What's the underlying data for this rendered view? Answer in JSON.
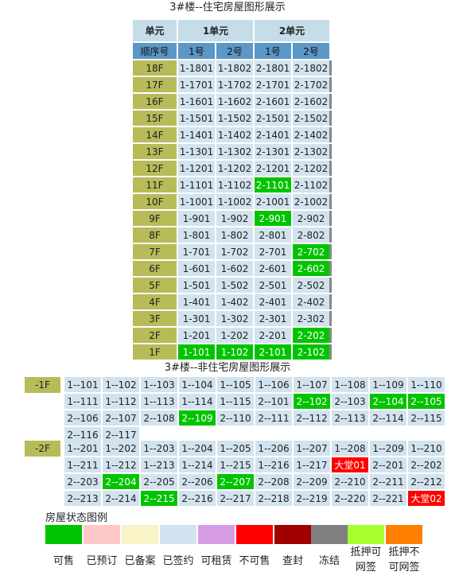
{
  "res_title": "3#楼--住宅房屋图形展示",
  "nonres_title": "3#楼--非住宅房屋图形展示",
  "res": {
    "h_unit": "单元",
    "units": [
      "1单元",
      "2单元"
    ],
    "h_seq": "顺序号",
    "nums": [
      "1号",
      "2号",
      "1号",
      "2号"
    ],
    "rows": [
      {
        "f": "18F",
        "c": [
          "1-1801",
          "1-1802",
          "2-1801",
          "2-1802"
        ],
        "s": [
          "",
          "",
          "",
          ""
        ]
      },
      {
        "f": "17F",
        "c": [
          "1-1701",
          "1-1702",
          "2-1701",
          "2-1702"
        ],
        "s": [
          "",
          "",
          "",
          ""
        ]
      },
      {
        "f": "16F",
        "c": [
          "1-1601",
          "1-1602",
          "2-1601",
          "2-1602"
        ],
        "s": [
          "",
          "",
          "",
          ""
        ]
      },
      {
        "f": "15F",
        "c": [
          "1-1501",
          "1-1502",
          "2-1501",
          "2-1502"
        ],
        "s": [
          "",
          "",
          "",
          ""
        ]
      },
      {
        "f": "14F",
        "c": [
          "1-1401",
          "1-1402",
          "2-1401",
          "2-1402"
        ],
        "s": [
          "",
          "",
          "",
          ""
        ]
      },
      {
        "f": "13F",
        "c": [
          "1-1301",
          "1-1302",
          "2-1301",
          "2-1302"
        ],
        "s": [
          "",
          "",
          "",
          ""
        ]
      },
      {
        "f": "12F",
        "c": [
          "1-1201",
          "1-1202",
          "2-1201",
          "2-1202"
        ],
        "s": [
          "",
          "",
          "",
          ""
        ]
      },
      {
        "f": "11F",
        "c": [
          "1-1101",
          "1-1102",
          "2-1101",
          "2-1102"
        ],
        "s": [
          "",
          "",
          "green",
          ""
        ]
      },
      {
        "f": "10F",
        "c": [
          "1-1001",
          "1-1002",
          "2-1001",
          "2-1002"
        ],
        "s": [
          "",
          "",
          "",
          ""
        ]
      },
      {
        "f": "9F",
        "c": [
          "1-901",
          "1-902",
          "2-901",
          "2-902"
        ],
        "s": [
          "",
          "",
          "green",
          ""
        ]
      },
      {
        "f": "8F",
        "c": [
          "1-801",
          "1-802",
          "2-801",
          "2-802"
        ],
        "s": [
          "",
          "",
          "",
          ""
        ]
      },
      {
        "f": "7F",
        "c": [
          "1-701",
          "1-702",
          "2-701",
          "2-702"
        ],
        "s": [
          "",
          "",
          "",
          "green"
        ]
      },
      {
        "f": "6F",
        "c": [
          "1-601",
          "1-602",
          "2-601",
          "2-602"
        ],
        "s": [
          "",
          "",
          "",
          "green"
        ]
      },
      {
        "f": "5F",
        "c": [
          "1-501",
          "1-502",
          "2-501",
          "2-502"
        ],
        "s": [
          "",
          "",
          "",
          ""
        ]
      },
      {
        "f": "4F",
        "c": [
          "1-401",
          "1-402",
          "2-401",
          "2-402"
        ],
        "s": [
          "",
          "",
          "",
          ""
        ]
      },
      {
        "f": "3F",
        "c": [
          "1-301",
          "1-302",
          "2-301",
          "2-302"
        ],
        "s": [
          "",
          "",
          "",
          ""
        ]
      },
      {
        "f": "2F",
        "c": [
          "1-201",
          "1-202",
          "2-201",
          "2-202"
        ],
        "s": [
          "",
          "",
          "",
          "green"
        ]
      },
      {
        "f": "1F",
        "c": [
          "1-101",
          "1-102",
          "2-101",
          "2-102"
        ],
        "s": [
          "green",
          "green",
          "green",
          "green"
        ]
      }
    ]
  },
  "nonres": [
    {
      "f": "-1F",
      "rows": [
        {
          "c": [
            "1--101",
            "1--102",
            "1--103",
            "1--104",
            "1--105",
            "1--106",
            "1--107",
            "1--108",
            "1--109",
            "1--110"
          ],
          "s": [
            "",
            "",
            "",
            "",
            "",
            "",
            "",
            "",
            "",
            ""
          ]
        },
        {
          "c": [
            "1--111",
            "1--112",
            "1--113",
            "1--114",
            "1--115",
            "2--101",
            "2--102",
            "2--103",
            "2--104",
            "2--105"
          ],
          "s": [
            "",
            "",
            "",
            "",
            "",
            "",
            "green",
            "",
            "green",
            "green"
          ]
        },
        {
          "c": [
            "2--106",
            "2--107",
            "2--108",
            "2--109",
            "2--110",
            "2--111",
            "2--112",
            "2--113",
            "2--114",
            "2--115"
          ],
          "s": [
            "",
            "",
            "",
            "green",
            "",
            "",
            "",
            "",
            "",
            ""
          ]
        },
        {
          "c": [
            "2--116",
            "2--117"
          ],
          "s": [
            "",
            ""
          ]
        }
      ]
    },
    {
      "f": "-2F",
      "rows": [
        {
          "c": [
            "1--201",
            "1--202",
            "1--203",
            "1--204",
            "1--205",
            "1--206",
            "1--207",
            "1--208",
            "1--209",
            "1--210"
          ],
          "s": [
            "",
            "",
            "",
            "",
            "",
            "",
            "",
            "",
            "",
            ""
          ]
        },
        {
          "c": [
            "1--211",
            "1--212",
            "1--213",
            "1--214",
            "1--215",
            "1--216",
            "1--217",
            "大堂01",
            "2--201",
            "2--202"
          ],
          "s": [
            "",
            "",
            "",
            "",
            "",
            "",
            "",
            "red",
            "",
            ""
          ]
        },
        {
          "c": [
            "2--203",
            "2--204",
            "2--205",
            "2--206",
            "2--207",
            "2--208",
            "2--209",
            "2--210",
            "2--211",
            "2--212"
          ],
          "s": [
            "",
            "green",
            "",
            "",
            "green",
            "",
            "",
            "",
            "",
            ""
          ]
        },
        {
          "c": [
            "2--213",
            "2--214",
            "2--215",
            "2--216",
            "2--217",
            "2--218",
            "2--219",
            "2--220",
            "2--221",
            "大堂02"
          ],
          "s": [
            "",
            "",
            "green",
            "",
            "",
            "",
            "",
            "",
            "",
            "red"
          ]
        }
      ]
    }
  ],
  "legend": {
    "title": "房屋状态图例",
    "items": [
      {
        "label": "可售",
        "color": "#00c400"
      },
      {
        "label": "已预订",
        "color": "#ffc8c8"
      },
      {
        "label": "已备案",
        "color": "#f8f4c8"
      },
      {
        "label": "已签约",
        "color": "#d2e3ef"
      },
      {
        "label": "可租赁",
        "color": "#d89ce6"
      },
      {
        "label": "不可售",
        "color": "#ff0000"
      },
      {
        "label": "查封",
        "color": "#a00000"
      },
      {
        "label": "冻结",
        "color": "#808080"
      },
      {
        "label": "抵押可网签",
        "color": "#a6ff2c"
      },
      {
        "label": "抵押不可网签",
        "color": "#ff8000"
      }
    ]
  }
}
